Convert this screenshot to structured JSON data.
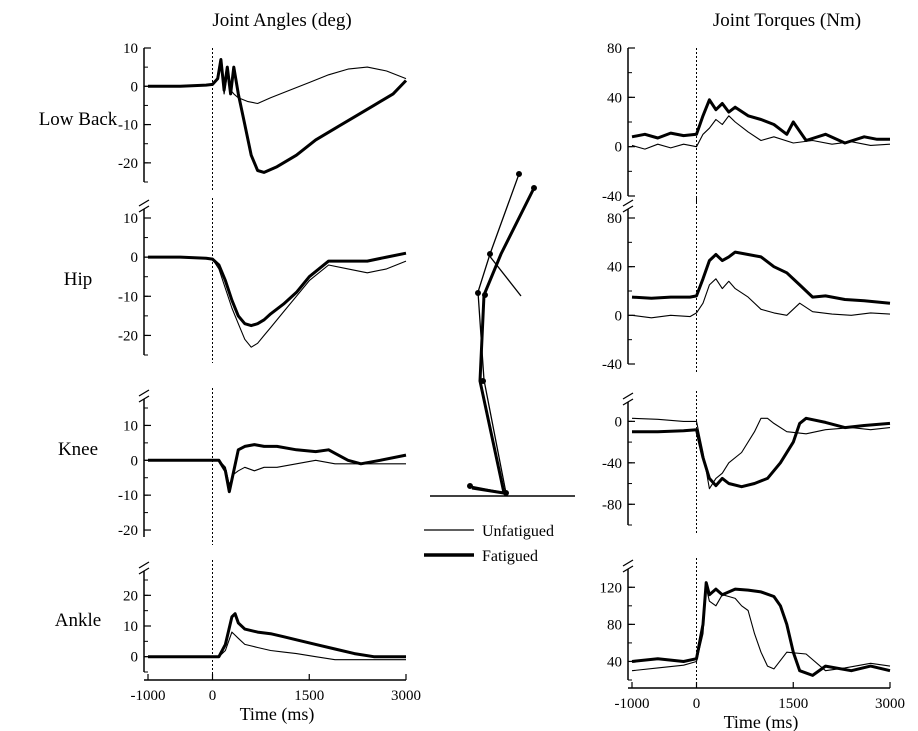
{
  "chart_data": [
    {
      "type": "line",
      "title": "Joint Angles (deg)",
      "row_label": "Low Back",
      "xlabel": "",
      "xlim": [
        -1000,
        3000
      ],
      "ylim": [
        -25,
        10
      ],
      "yticks": [
        10,
        0,
        -10,
        -20
      ],
      "series": [
        {
          "name": "Unfatigued",
          "x": [
            -1000,
            -500,
            -100,
            0,
            80,
            130,
            180,
            230,
            280,
            330,
            400,
            550,
            700,
            900,
            1200,
            1500,
            1800,
            2100,
            2400,
            2700,
            3000
          ],
          "y": [
            0,
            0,
            0.3,
            0.5,
            2,
            6,
            -2,
            3,
            -1,
            -2,
            -3,
            -4,
            -4.5,
            -3,
            -1,
            1,
            3,
            4.5,
            5,
            4,
            2
          ]
        },
        {
          "name": "Fatigued",
          "x": [
            -1000,
            -500,
            -100,
            0,
            80,
            130,
            180,
            230,
            280,
            330,
            400,
            500,
            600,
            700,
            800,
            1000,
            1300,
            1600,
            1900,
            2200,
            2500,
            2800,
            3000
          ],
          "y": [
            0,
            0,
            0.3,
            0.5,
            2,
            7,
            -1,
            5,
            -2,
            5,
            -2,
            -10,
            -18,
            -22,
            -22.5,
            -21,
            -18,
            -14,
            -11,
            -8,
            -5,
            -2,
            1.5
          ]
        }
      ]
    },
    {
      "type": "line",
      "row_label": "Hip",
      "xlabel": "",
      "xlim": [
        -1000,
        3000
      ],
      "ylim": [
        -25,
        10
      ],
      "yticks": [
        10,
        0,
        -10,
        -20
      ],
      "series": [
        {
          "name": "Unfatigued",
          "x": [
            -1000,
            -500,
            -100,
            0,
            100,
            200,
            300,
            400,
            500,
            600,
            700,
            800,
            900,
            1100,
            1300,
            1500,
            1800,
            2100,
            2400,
            2700,
            3000
          ],
          "y": [
            0,
            0,
            -0.3,
            -0.5,
            -3,
            -8,
            -13,
            -17,
            -21,
            -23,
            -22,
            -20,
            -18,
            -14,
            -10,
            -6,
            -2,
            -3,
            -4,
            -3,
            -1
          ]
        },
        {
          "name": "Fatigued",
          "x": [
            -1000,
            -500,
            -100,
            0,
            100,
            200,
            300,
            400,
            500,
            600,
            700,
            800,
            900,
            1100,
            1300,
            1500,
            1800,
            2100,
            2400,
            2700,
            3000
          ],
          "y": [
            0,
            0,
            -0.3,
            -0.5,
            -2,
            -6,
            -11,
            -15,
            -17,
            -17.5,
            -17,
            -16,
            -14.5,
            -12,
            -9,
            -5,
            -1,
            -1,
            -1,
            0,
            1
          ]
        }
      ]
    },
    {
      "type": "line",
      "row_label": "Knee",
      "xlabel": "",
      "xlim": [
        -1000,
        3000
      ],
      "ylim": [
        -22,
        15
      ],
      "yticks": [
        10,
        0,
        -10,
        -20
      ],
      "series": [
        {
          "name": "Unfatigued",
          "x": [
            -1000,
            -500,
            -100,
            0,
            100,
            200,
            260,
            330,
            400,
            500,
            650,
            800,
            1000,
            1300,
            1600,
            1900,
            2200,
            2600,
            3000
          ],
          "y": [
            0,
            0,
            0,
            0,
            0,
            -2,
            -7,
            -4,
            -3,
            -2,
            -3,
            -2,
            -2,
            -1,
            0,
            -1,
            -1,
            -1,
            -1
          ]
        },
        {
          "name": "Fatigued",
          "x": [
            -1000,
            -500,
            -100,
            0,
            100,
            200,
            260,
            330,
            400,
            500,
            650,
            800,
            1000,
            1300,
            1600,
            1800,
            1900,
            2100,
            2300,
            2600,
            3000
          ],
          "y": [
            0,
            0,
            0,
            0,
            0,
            -3,
            -9,
            -3,
            3,
            4,
            4.5,
            4,
            4,
            3,
            2.5,
            3,
            2,
            0,
            -1,
            0,
            1.5
          ]
        }
      ]
    },
    {
      "type": "line",
      "row_label": "Ankle",
      "xlabel": "Time (ms)",
      "xlim": [
        -1000,
        3000
      ],
      "ylim": [
        -5,
        25
      ],
      "yticks": [
        20,
        10,
        0
      ],
      "xticks": [
        -1000,
        0,
        1500,
        3000
      ],
      "series": [
        {
          "name": "Unfatigued",
          "x": [
            -1000,
            -500,
            -100,
            0,
            100,
            200,
            300,
            400,
            500,
            700,
            900,
            1100,
            1300,
            1600,
            1900,
            2200,
            2500,
            3000
          ],
          "y": [
            0,
            0,
            0,
            0,
            0,
            2,
            8,
            6,
            4,
            3,
            2,
            1.5,
            1,
            0,
            -1,
            -1,
            -1,
            -1
          ]
        },
        {
          "name": "Fatigued",
          "x": [
            -1000,
            -500,
            -100,
            0,
            100,
            200,
            300,
            350,
            400,
            500,
            700,
            900,
            1100,
            1300,
            1600,
            1900,
            2200,
            2500,
            3000
          ],
          "y": [
            0,
            0,
            0,
            0,
            0,
            4,
            13,
            14,
            11,
            9,
            8,
            7.5,
            6.5,
            5.5,
            4,
            2.5,
            1,
            0,
            0
          ]
        }
      ]
    },
    {
      "type": "line",
      "title": "Joint Torques (Nm)",
      "xlabel": "",
      "xlim": [
        -1000,
        3000
      ],
      "ylim": [
        -40,
        80
      ],
      "yticks": [
        80,
        40,
        0,
        -40
      ],
      "series": [
        {
          "name": "Unfatigued",
          "x": [
            -1000,
            -800,
            -600,
            -400,
            -200,
            0,
            100,
            200,
            300,
            400,
            500,
            600,
            800,
            1000,
            1200,
            1500,
            1800,
            2100,
            2400,
            2700,
            3000
          ],
          "y": [
            1,
            -2,
            2,
            -1,
            2,
            0,
            10,
            15,
            22,
            18,
            25,
            20,
            12,
            5,
            8,
            3,
            5,
            2,
            4,
            1,
            2
          ]
        },
        {
          "name": "Fatigued",
          "x": [
            -1000,
            -800,
            -600,
            -400,
            -200,
            0,
            100,
            200,
            300,
            400,
            500,
            600,
            800,
            1000,
            1200,
            1400,
            1500,
            1700,
            2000,
            2300,
            2600,
            2800,
            3000
          ],
          "y": [
            8,
            10,
            7,
            11,
            9,
            10,
            25,
            38,
            30,
            35,
            28,
            32,
            25,
            22,
            18,
            10,
            20,
            5,
            10,
            3,
            8,
            6,
            6
          ]
        }
      ]
    },
    {
      "type": "line",
      "xlabel": "",
      "xlim": [
        -1000,
        3000
      ],
      "ylim": [
        -40,
        80
      ],
      "yticks": [
        80,
        40,
        0,
        -40
      ],
      "series": [
        {
          "name": "Unfatigued",
          "x": [
            -1000,
            -700,
            -400,
            -100,
            0,
            100,
            200,
            300,
            400,
            500,
            600,
            800,
            1000,
            1200,
            1400,
            1600,
            1800,
            2100,
            2400,
            2700,
            3000
          ],
          "y": [
            0,
            -2,
            0,
            -1,
            2,
            10,
            25,
            30,
            22,
            28,
            22,
            15,
            5,
            2,
            0,
            10,
            3,
            1,
            0,
            2,
            1
          ]
        },
        {
          "name": "Fatigued",
          "x": [
            -1000,
            -700,
            -400,
            -100,
            0,
            100,
            200,
            300,
            400,
            500,
            600,
            800,
            1000,
            1200,
            1400,
            1600,
            1800,
            2000,
            2300,
            2600,
            3000
          ],
          "y": [
            15,
            14,
            15,
            15,
            16,
            30,
            45,
            50,
            45,
            48,
            52,
            50,
            48,
            40,
            35,
            25,
            15,
            16,
            13,
            12,
            10
          ]
        }
      ]
    },
    {
      "type": "line",
      "xlabel": "",
      "xlim": [
        -1000,
        3000
      ],
      "ylim": [
        -100,
        10
      ],
      "yticks": [
        0,
        -40,
        -80
      ],
      "series": [
        {
          "name": "Unfatigued",
          "x": [
            -1000,
            -600,
            -200,
            0,
            100,
            200,
            300,
            400,
            500,
            700,
            900,
            1000,
            1100,
            1200,
            1400,
            1700,
            2000,
            2400,
            2700,
            3000
          ],
          "y": [
            3,
            2,
            0,
            0,
            -30,
            -65,
            -55,
            -50,
            -40,
            -30,
            -10,
            3,
            3,
            -2,
            -10,
            -12,
            -8,
            -6,
            -8,
            -6
          ]
        },
        {
          "name": "Fatigued",
          "x": [
            -1000,
            -600,
            -200,
            0,
            100,
            200,
            300,
            400,
            500,
            700,
            900,
            1100,
            1300,
            1500,
            1600,
            1700,
            2000,
            2300,
            2600,
            3000
          ],
          "y": [
            -10,
            -10,
            -9,
            -8,
            -35,
            -55,
            -62,
            -55,
            -60,
            -63,
            -60,
            -55,
            -40,
            -20,
            -2,
            3,
            -1,
            -6,
            -4,
            -2
          ]
        }
      ]
    },
    {
      "type": "line",
      "xlabel": "Time (ms)",
      "xlim": [
        -1000,
        3000
      ],
      "ylim": [
        20,
        130
      ],
      "yticks": [
        120,
        80,
        40
      ],
      "xticks": [
        -1000,
        0,
        1500,
        3000
      ],
      "series": [
        {
          "name": "Unfatigued",
          "x": [
            -1000,
            -600,
            -200,
            0,
            100,
            150,
            200,
            300,
            400,
            500,
            600,
            700,
            800,
            900,
            1000,
            1100,
            1200,
            1400,
            1700,
            2000,
            2300,
            2700,
            3000
          ],
          "y": [
            30,
            33,
            36,
            40,
            70,
            120,
            105,
            100,
            112,
            110,
            108,
            100,
            95,
            70,
            50,
            35,
            32,
            50,
            48,
            30,
            33,
            38,
            35
          ]
        },
        {
          "name": "Fatigued",
          "x": [
            -1000,
            -600,
            -200,
            0,
            100,
            150,
            200,
            300,
            400,
            600,
            800,
            1000,
            1200,
            1300,
            1400,
            1500,
            1600,
            1800,
            2000,
            2400,
            2700,
            3000
          ],
          "y": [
            40,
            43,
            40,
            43,
            80,
            125,
            112,
            118,
            112,
            118,
            117,
            115,
            110,
            100,
            80,
            50,
            30,
            25,
            35,
            30,
            35,
            30
          ]
        }
      ]
    }
  ],
  "legend": {
    "unfatigued": "Unfatigued",
    "fatigued": "Fatigued"
  }
}
